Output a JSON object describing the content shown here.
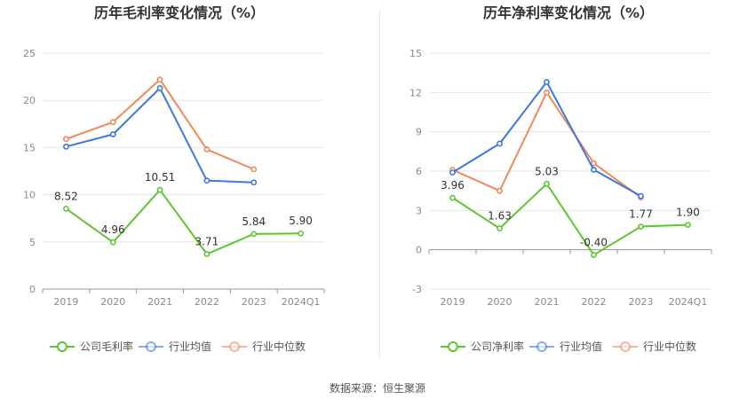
{
  "chart_data": [
    {
      "type": "line",
      "title": "历年毛利率变化情况（%）",
      "categories": [
        "2019",
        "2020",
        "2021",
        "2022",
        "2023",
        "2024Q1"
      ],
      "y_ticks": [
        "0",
        "5",
        "10",
        "15",
        "20",
        "25"
      ],
      "ylim": [
        0,
        25
      ],
      "grid": true,
      "legend_position": "bottom",
      "series": [
        {
          "name": "公司毛利率",
          "color": "#5cc72e",
          "values": [
            8.52,
            4.96,
            10.51,
            3.71,
            5.84,
            5.9
          ],
          "labels": [
            "8.52",
            "4.96",
            "10.51",
            "3.71",
            "5.84",
            "5.90"
          ]
        },
        {
          "name": "行业均值",
          "color": "#3b78e0",
          "values": [
            15.1,
            16.4,
            21.3,
            11.5,
            11.3,
            null
          ]
        },
        {
          "name": "行业中位数",
          "color": "#f0895a",
          "values": [
            15.9,
            17.7,
            22.2,
            14.8,
            12.7,
            null
          ]
        }
      ]
    },
    {
      "type": "line",
      "title": "历年净利率变化情况（%）",
      "categories": [
        "2019",
        "2020",
        "2021",
        "2022",
        "2023",
        "2024Q1"
      ],
      "y_ticks": [
        "-3",
        "0",
        "3",
        "6",
        "9",
        "12",
        "15"
      ],
      "ylim": [
        -3,
        15
      ],
      "grid": true,
      "legend_position": "bottom",
      "series": [
        {
          "name": "公司净利率",
          "color": "#5cc72e",
          "values": [
            3.96,
            1.63,
            5.03,
            -0.4,
            1.77,
            1.9
          ],
          "labels": [
            "3.96",
            "1.63",
            "5.03",
            "-0.40",
            "1.77",
            "1.90"
          ]
        },
        {
          "name": "行业均值",
          "color": "#3b78e0",
          "values": [
            5.9,
            8.1,
            12.8,
            6.1,
            4.1,
            null
          ]
        },
        {
          "name": "行业中位数",
          "color": "#f0895a",
          "values": [
            6.1,
            4.5,
            12.0,
            6.6,
            4.0,
            null
          ]
        }
      ]
    }
  ],
  "footer": {
    "source": "数据来源：恒生聚源"
  }
}
